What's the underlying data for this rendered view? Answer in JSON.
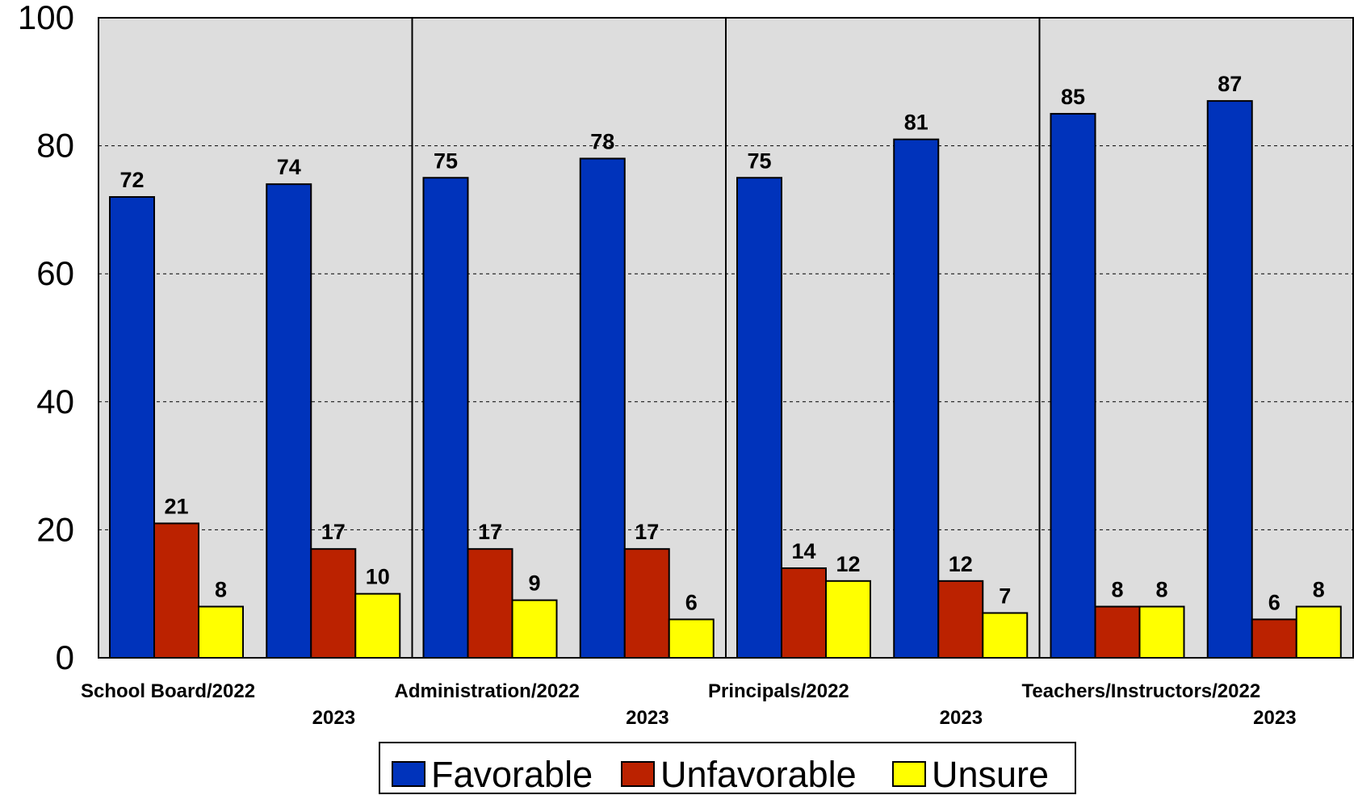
{
  "chart_data": {
    "type": "bar",
    "title": "",
    "xlabel": "",
    "ylabel": "",
    "ylim": [
      0,
      100
    ],
    "yticks": [
      "0",
      "20",
      "40",
      "60",
      "80",
      "100"
    ],
    "grid": true,
    "legend_position": "bottom",
    "groups": [
      {
        "label": "School Board/2022",
        "secondary_label": "2023"
      },
      {
        "label": "Administration/2022",
        "secondary_label": "2023"
      },
      {
        "label": "Principals/2022",
        "secondary_label": "2023"
      },
      {
        "label": "Teachers/Instructors/2022",
        "secondary_label": "2023"
      }
    ],
    "categories": [
      "School Board/2022",
      "School Board/2023",
      "Administration/2022",
      "Administration/2023",
      "Principals/2022",
      "Principals/2023",
      "Teachers/Instructors/2022",
      "Teachers/Instructors/2023"
    ],
    "series": [
      {
        "name": "Favorable",
        "color": "#0033BB",
        "values": [
          72,
          74,
          75,
          78,
          75,
          81,
          85,
          87
        ]
      },
      {
        "name": "Unfavorable",
        "color": "#BB2200",
        "values": [
          21,
          17,
          17,
          17,
          14,
          12,
          8,
          6
        ]
      },
      {
        "name": "Unsure",
        "color": "#FFFF00",
        "values": [
          8,
          10,
          9,
          6,
          12,
          7,
          8,
          8
        ]
      }
    ]
  },
  "colors": {
    "plot_background": "#DDDDDD",
    "frame": "#000000"
  }
}
